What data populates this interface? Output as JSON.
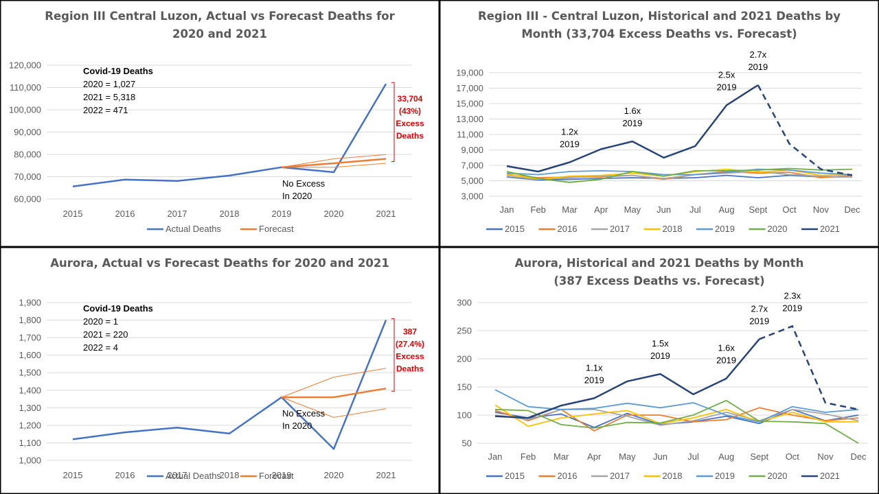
{
  "colors": {
    "actual": "#4472c4",
    "forecast": "#ed7d31",
    "y2015": "#4472c4",
    "y2016": "#ed7d31",
    "y2017": "#a5a5a5",
    "y2018": "#ffc000",
    "y2019": "#5b9bd5",
    "y2020": "#70ad47",
    "y2021": "#264478",
    "excess": "#e00000"
  },
  "chart_data": [
    {
      "id": "c1",
      "type": "line",
      "title": [
        "Region III Central Luzon, Actual vs Forecast Deaths for",
        "2020 and 2021"
      ],
      "xlabel": "",
      "ylabel": "",
      "categories": [
        "2015",
        "2016",
        "2017",
        "2018",
        "2019",
        "2020",
        "2021"
      ],
      "ylim": [
        60000,
        120000
      ],
      "ytick_step": 10000,
      "grid": true,
      "legend": "bottom",
      "series": [
        {
          "name": "Actual Deaths",
          "color_key": "actual",
          "width": 2.5,
          "values": [
            65600,
            68700,
            68100,
            70500,
            74200,
            72000,
            111600
          ]
        },
        {
          "name": "Forecast",
          "color_key": "forecast",
          "width": 2.5,
          "values": [
            null,
            null,
            null,
            null,
            74200,
            76000,
            78000
          ]
        },
        {
          "color_key": "forecast",
          "width": 1,
          "values": [
            null,
            null,
            null,
            null,
            74200,
            78000,
            79900
          ]
        },
        {
          "color_key": "forecast",
          "width": 1,
          "values": [
            null,
            null,
            null,
            null,
            74200,
            74200,
            76000
          ]
        }
      ],
      "annotations": {
        "covid_title": "Covid-19 Deaths",
        "covid_lines": [
          "2020 = 1,027",
          "2021 = 5,318",
          "2022 = 471"
        ],
        "no_excess": [
          "No Excess",
          "In 2020"
        ],
        "excess": [
          "33,704",
          "(43%)",
          "Excess",
          "Deaths"
        ]
      }
    },
    {
      "id": "c2",
      "type": "line",
      "title": [
        "Region III - Central Luzon, Historical and 2021 Deaths by",
        "Month (33,704 Excess Deaths vs. Forecast)"
      ],
      "xlabel": "",
      "ylabel": "",
      "categories": [
        "Jan",
        "Feb",
        "Mar",
        "Apr",
        "May",
        "Jun",
        "Jul",
        "Aug",
        "Sept",
        "Oct",
        "Nov",
        "Dec"
      ],
      "ylim": [
        3000,
        19000
      ],
      "ytick_step": 2000,
      "grid": true,
      "legend": "bottom",
      "series": [
        {
          "name": "2015",
          "color_key": "y2015",
          "values": [
            5500,
            5100,
            5200,
            5300,
            5400,
            5300,
            5400,
            5700,
            5400,
            5700,
            5500,
            5500
          ]
        },
        {
          "name": "2016",
          "color_key": "y2016",
          "values": [
            5800,
            5400,
            5500,
            5500,
            5700,
            5200,
            5800,
            6200,
            6000,
            6100,
            5400,
            5700
          ]
        },
        {
          "name": "2017",
          "color_key": "y2017",
          "values": [
            5600,
            5200,
            5400,
            5600,
            5700,
            5300,
            5800,
            6000,
            6200,
            5800,
            5600,
            5500
          ]
        },
        {
          "name": "2018",
          "color_key": "y2018",
          "values": [
            5900,
            5200,
            5600,
            5700,
            6000,
            5600,
            6200,
            6500,
            6100,
            6400,
            5700,
            5800
          ]
        },
        {
          "name": "2019",
          "color_key": "y2019",
          "values": [
            6000,
            5800,
            6200,
            6300,
            6200,
            5800,
            5800,
            6100,
            6500,
            6400,
            6000,
            5800
          ]
        },
        {
          "name": "2020",
          "color_key": "y2020",
          "values": [
            6200,
            5300,
            4800,
            5200,
            6200,
            5600,
            6300,
            6300,
            6400,
            6600,
            6400,
            6500
          ]
        },
        {
          "name": "2021",
          "color_key": "y2021",
          "width": 2.5,
          "dash_from": 9,
          "values": [
            6900,
            6200,
            7400,
            9100,
            10100,
            8000,
            9500,
            14800,
            17400,
            9800,
            6500,
            5700
          ]
        }
      ],
      "annotations": [
        {
          "lines": [
            "1.2x",
            "2019"
          ],
          "at": "Mar"
        },
        {
          "lines": [
            "1.6x",
            "2019"
          ],
          "at": "May"
        },
        {
          "lines": [
            "2.5x",
            "2019"
          ],
          "at": "Aug"
        },
        {
          "lines": [
            "2.7x",
            "2019"
          ],
          "at": "Sept"
        }
      ]
    },
    {
      "id": "c3",
      "type": "line",
      "title": [
        "Aurora, Actual vs Forecast Deaths for 2020 and 2021"
      ],
      "xlabel": "",
      "ylabel": "",
      "categories": [
        "2015",
        "2016",
        "2017",
        "2018",
        "2019",
        "2020",
        "2021"
      ],
      "ylim": [
        1000,
        1900
      ],
      "ytick_step": 100,
      "grid": true,
      "legend": "bottom",
      "series": [
        {
          "name": "Actual Deaths",
          "color_key": "actual",
          "width": 2.5,
          "values": [
            1120,
            1160,
            1187,
            1153,
            1360,
            1065,
            1800
          ]
        },
        {
          "name": "Forecast",
          "color_key": "forecast",
          "width": 2.5,
          "values": [
            null,
            null,
            null,
            null,
            1360,
            1360,
            1410
          ]
        },
        {
          "color_key": "forecast",
          "width": 1,
          "values": [
            null,
            null,
            null,
            null,
            1360,
            1475,
            1525
          ]
        },
        {
          "color_key": "forecast",
          "width": 1,
          "values": [
            null,
            null,
            null,
            null,
            1360,
            1245,
            1295
          ]
        }
      ],
      "annotations": {
        "covid_title": "Covid-19 Deaths",
        "covid_lines": [
          "2020 = 1",
          "2021 = 220",
          "2022 = 4"
        ],
        "no_excess": [
          "No Excess",
          "In 2020"
        ],
        "excess": [
          "387",
          "(27.4%)",
          "Excess",
          "Deaths"
        ]
      }
    },
    {
      "id": "c4",
      "type": "line",
      "title": [
        "Aurora, Historical and 2021 Deaths by Month",
        "(387 Excess Deaths vs. Forecast)"
      ],
      "xlabel": "",
      "ylabel": "",
      "categories": [
        "Jan",
        "Feb",
        "Mar",
        "Apr",
        "May",
        "Jun",
        "Jul",
        "Aug",
        "Sept",
        "Oct",
        "Nov",
        "Dec"
      ],
      "ylim": [
        50,
        300
      ],
      "ytick_step": 50,
      "grid": true,
      "legend": "bottom",
      "series": [
        {
          "name": "2015",
          "color_key": "y2015",
          "values": [
            105,
            95,
            102,
            78,
            103,
            83,
            88,
            98,
            85,
            110,
            90,
            100
          ]
        },
        {
          "name": "2016",
          "color_key": "y2016",
          "values": [
            108,
            90,
            110,
            72,
            100,
            100,
            88,
            92,
            113,
            100,
            90,
            95
          ]
        },
        {
          "name": "2017",
          "color_key": "y2017",
          "values": [
            100,
            92,
            110,
            110,
            98,
            82,
            90,
            105,
            90,
            110,
            102,
            90
          ]
        },
        {
          "name": "2018",
          "color_key": "y2018",
          "values": [
            118,
            80,
            95,
            102,
            108,
            85,
            95,
            110,
            88,
            105,
            88,
            88
          ]
        },
        {
          "name": "2019",
          "color_key": "y2019",
          "values": [
            145,
            115,
            110,
            112,
            121,
            113,
            122,
            100,
            88,
            115,
            105,
            110
          ]
        },
        {
          "name": "2020",
          "color_key": "y2020",
          "values": [
            110,
            108,
            83,
            77,
            87,
            86,
            100,
            126,
            89,
            88,
            85,
            40
          ]
        },
        {
          "name": "2021",
          "color_key": "y2021",
          "width": 2.5,
          "dash_from": 9,
          "values": [
            98,
            95,
            117,
            130,
            160,
            173,
            137,
            165,
            235,
            258,
            122,
            110
          ]
        }
      ],
      "annotations": [
        {
          "lines": [
            "1.1x",
            "2019"
          ],
          "at": "Apr"
        },
        {
          "lines": [
            "1.5x",
            "2019"
          ],
          "at": "Jun"
        },
        {
          "lines": [
            "1.6x",
            "2019"
          ],
          "at": "Aug"
        },
        {
          "lines": [
            "2.7x",
            "2019"
          ],
          "at": "Sept"
        },
        {
          "lines": [
            "2.3x",
            "2019"
          ],
          "at": "Oct"
        }
      ]
    }
  ]
}
